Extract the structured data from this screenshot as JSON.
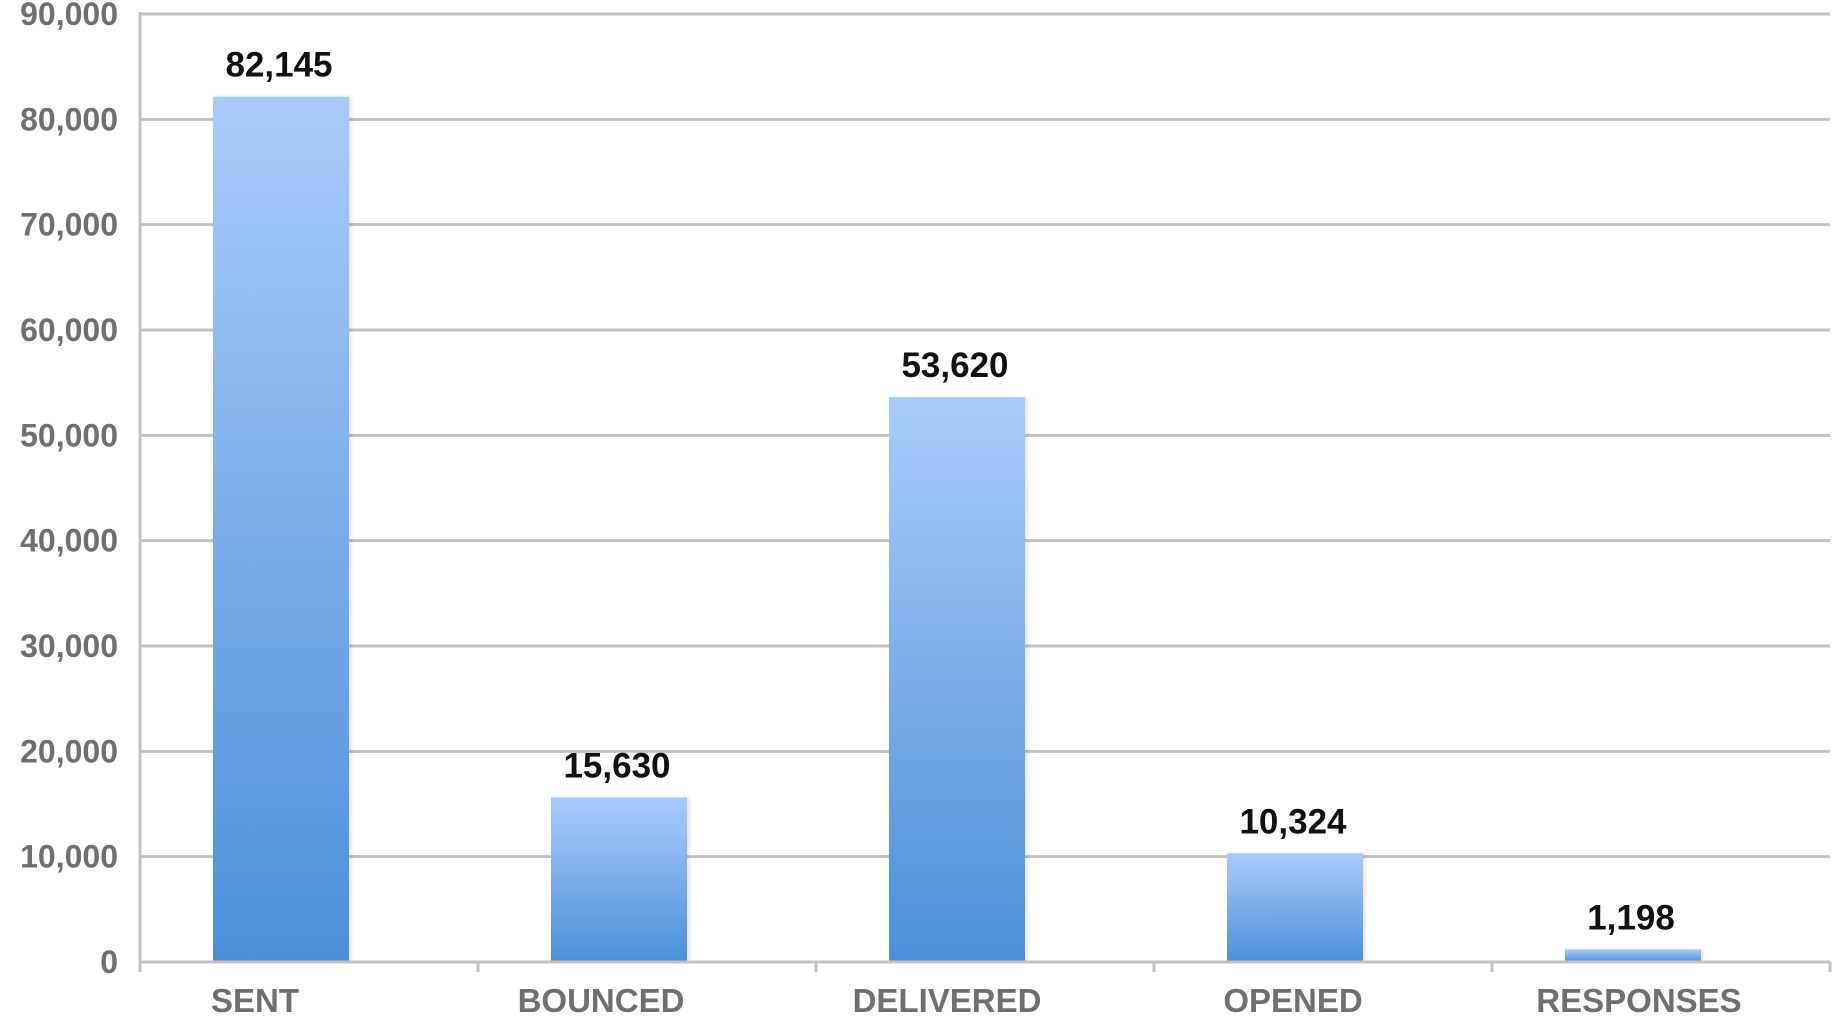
{
  "chart_data": {
    "type": "bar",
    "categories": [
      "SENT",
      "BOUNCED",
      "DELIVERED",
      "OPENED",
      "RESPONSES"
    ],
    "values": [
      82145,
      15630,
      53620,
      10324,
      1198
    ],
    "data_labels": [
      "82,145",
      "15,630",
      "53,620",
      "10,324",
      "1,198"
    ],
    "title": "",
    "xlabel": "",
    "ylabel": "",
    "ylim": [
      0,
      90000
    ],
    "yticks": [
      0,
      10000,
      20000,
      30000,
      40000,
      50000,
      60000,
      70000,
      80000,
      90000
    ],
    "ytick_labels": [
      "0",
      "10,000",
      "20,000",
      "30,000",
      "40,000",
      "50,000",
      "60,000",
      "70,000",
      "80,000",
      "90,000"
    ],
    "grid": true,
    "legend": "none",
    "colors": {
      "bar_top": "#a9cbfb",
      "bar_bottom": "#4a90d9",
      "grid": "#c2c2c2",
      "axis_text": "#6f6f6f",
      "label_text": "#111111"
    }
  }
}
